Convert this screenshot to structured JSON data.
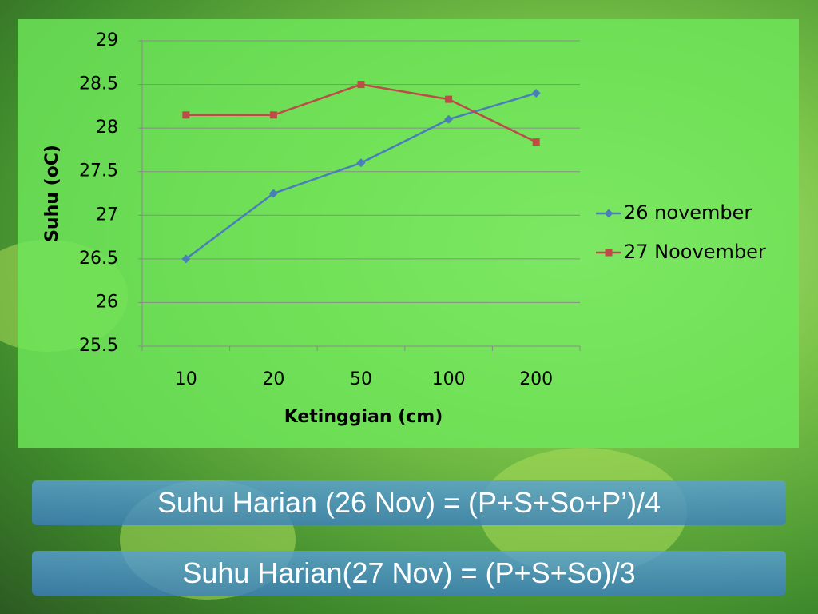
{
  "chart_data": {
    "type": "line",
    "x_label": "Ketinggian (cm)",
    "y_label": "Suhu (oC)",
    "categories": [
      "10",
      "20",
      "50",
      "100",
      "200"
    ],
    "series": [
      {
        "name": "26 november",
        "color": "#4a7ebb",
        "marker": "diamond",
        "values": [
          26.5,
          27.25,
          27.6,
          28.1,
          28.4
        ]
      },
      {
        "name": "27 Noovember",
        "color": "#be4b48",
        "marker": "square",
        "values": [
          28.15,
          28.15,
          28.5,
          28.33,
          27.84
        ]
      }
    ],
    "ylim": [
      25.5,
      29
    ],
    "yticks": [
      25.5,
      26,
      26.5,
      27,
      27.5,
      28,
      28.5,
      29
    ],
    "grid": true,
    "legend": "right"
  },
  "formulas": [
    "Suhu Harian (26 Nov) = (P+S+So+P’)/4",
    "Suhu Harian(27 Nov) = (P+S+So)/3"
  ]
}
